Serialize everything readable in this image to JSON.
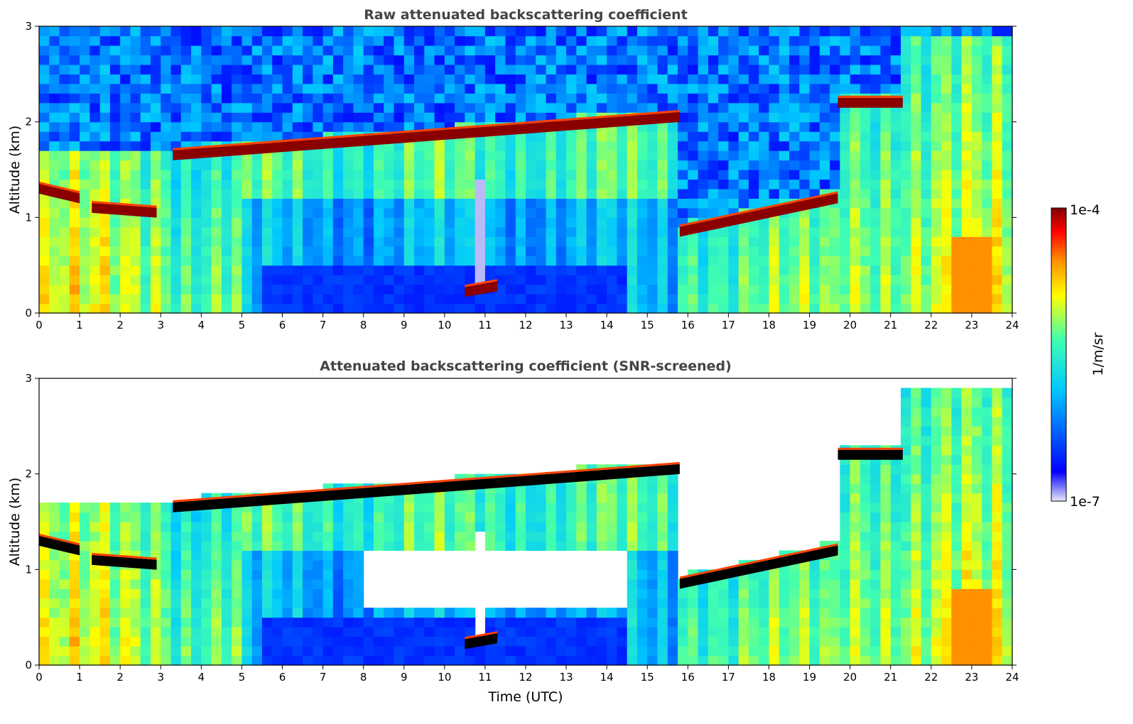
{
  "figure": {
    "colorbar": {
      "label": "1/m/sr",
      "max_label": "1e-4",
      "min_label": "1e-7",
      "scale": "log",
      "range": [
        1e-07,
        0.0001
      ],
      "colormap": [
        "#e8e8f8",
        "#0000ff",
        "#00c8ff",
        "#40ffb0",
        "#ffff00",
        "#ff9000",
        "#ff0000",
        "#800000"
      ]
    }
  },
  "chart_data": [
    {
      "type": "heatmap",
      "title": "Raw attenuated backscattering coefficient",
      "xlabel": "",
      "ylabel": "Altitude (km)",
      "xlim": [
        0,
        24
      ],
      "ylim": [
        0,
        3
      ],
      "xticks": [
        "0",
        "1",
        "2",
        "3",
        "4",
        "5",
        "6",
        "7",
        "8",
        "9",
        "10",
        "11",
        "12",
        "13",
        "14",
        "15",
        "16",
        "17",
        "18",
        "19",
        "20",
        "21",
        "22",
        "23",
        "24"
      ],
      "yticks": [
        "0",
        "1",
        "2",
        "3"
      ],
      "cloud_layers": [
        {
          "x": [
            0,
            1.0
          ],
          "y": [
            1.3,
            1.2
          ]
        },
        {
          "x": [
            1.3,
            2.9
          ],
          "y": [
            1.1,
            1.05
          ]
        },
        {
          "x": [
            3.3,
            15.8
          ],
          "y": [
            1.65,
            2.05
          ]
        },
        {
          "x": [
            10.5,
            11.3
          ],
          "y": [
            0.22,
            0.28
          ]
        },
        {
          "x": [
            15.8,
            19.7
          ],
          "y": [
            0.85,
            1.2
          ]
        },
        {
          "x": [
            19.7,
            21.3
          ],
          "y": [
            2.2,
            2.2
          ]
        }
      ]
    },
    {
      "type": "heatmap",
      "title": "Attenuated backscattering coefficient (SNR-screened)",
      "xlabel": "Time (UTC)",
      "ylabel": "Altitude (km)",
      "xlim": [
        0,
        24
      ],
      "ylim": [
        0,
        3
      ],
      "xticks": [
        "0",
        "1",
        "2",
        "3",
        "4",
        "5",
        "6",
        "7",
        "8",
        "9",
        "10",
        "11",
        "12",
        "13",
        "14",
        "15",
        "16",
        "17",
        "18",
        "19",
        "20",
        "21",
        "22",
        "23",
        "24"
      ],
      "yticks": [
        "0",
        "1",
        "2",
        "3"
      ],
      "cloud_layers": [
        {
          "x": [
            0,
            1.0
          ],
          "y": [
            1.3,
            1.2
          ]
        },
        {
          "x": [
            1.3,
            2.9
          ],
          "y": [
            1.1,
            1.05
          ]
        },
        {
          "x": [
            3.3,
            15.8
          ],
          "y": [
            1.65,
            2.05
          ]
        },
        {
          "x": [
            10.5,
            11.3
          ],
          "y": [
            0.22,
            0.28
          ]
        },
        {
          "x": [
            15.8,
            19.7
          ],
          "y": [
            0.85,
            1.2
          ]
        },
        {
          "x": [
            19.7,
            21.3
          ],
          "y": [
            2.2,
            2.2
          ]
        }
      ]
    }
  ]
}
